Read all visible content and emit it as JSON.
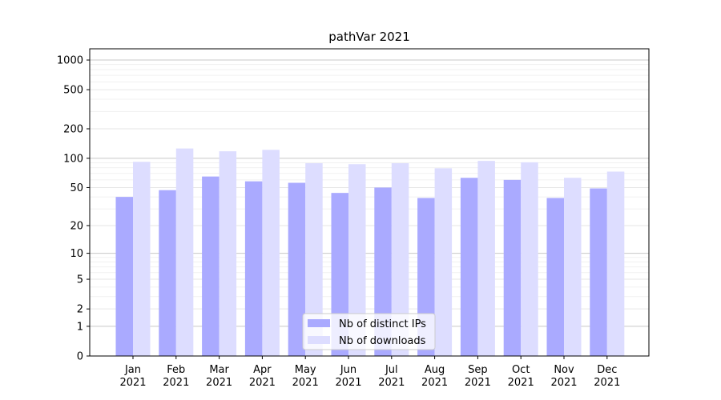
{
  "chart_data": {
    "type": "bar",
    "title": "pathVar 2021",
    "xlabel": "",
    "ylabel": "",
    "y_scale": "log1p",
    "ylim": [
      0,
      1300
    ],
    "y_major_ticks": [
      0,
      1,
      2,
      5,
      10,
      20,
      50,
      100,
      200,
      500,
      1000
    ],
    "y_tick_labels": [
      "0",
      "1",
      "2",
      "5",
      "10",
      "20",
      "50",
      "100",
      "200",
      "500",
      "1000"
    ],
    "grid": true,
    "legend_position": "bottom-center",
    "categories": [
      "Jan\n2021",
      "Feb\n2021",
      "Mar\n2021",
      "Apr\n2021",
      "May\n2021",
      "Jun\n2021",
      "Jul\n2021",
      "Aug\n2021",
      "Sep\n2021",
      "Oct\n2021",
      "Nov\n2021",
      "Dec\n2021"
    ],
    "series": [
      {
        "name": "Nb of distinct IPs",
        "color": "#aaaaff",
        "values": [
          40,
          47,
          65,
          58,
          56,
          44,
          50,
          39,
          63,
          60,
          39,
          49
        ]
      },
      {
        "name": "Nb of downloads",
        "color": "#ddddff",
        "values": [
          92,
          126,
          118,
          122,
          89,
          87,
          89,
          79,
          94,
          91,
          63,
          73
        ]
      }
    ]
  }
}
